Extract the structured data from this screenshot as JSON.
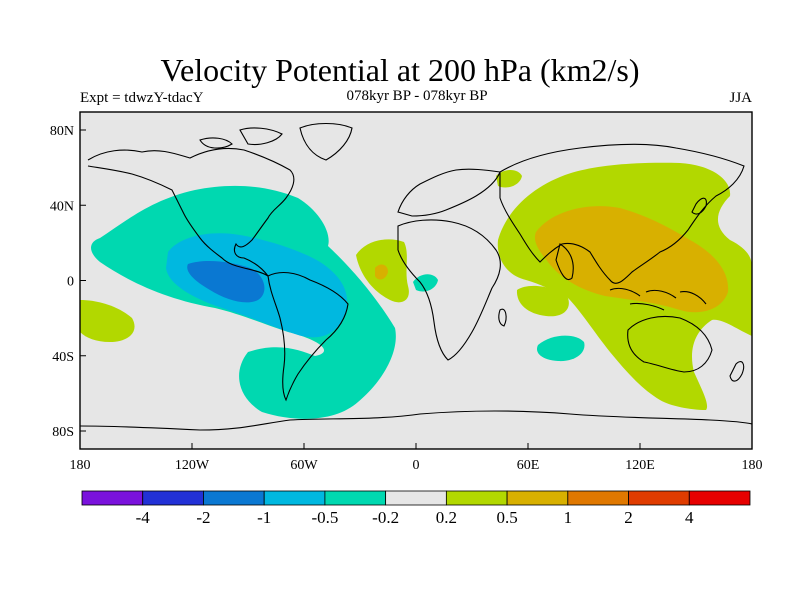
{
  "title": "Velocity Potential at 200 hPa (km2/s)",
  "subtitle_left": "Expt = tdwzY-tdacY",
  "subtitle_center": "078kyr BP - 078kyr BP",
  "subtitle_right": "JJA",
  "lat_ticks": [
    "80N",
    "40N",
    "0",
    "40S",
    "80S"
  ],
  "lon_ticks": [
    "180",
    "120W",
    "60W",
    "0",
    "60E",
    "120E",
    "180"
  ],
  "colorbar": {
    "colors": [
      "#7a12dc",
      "#2231d6",
      "#0a78d2",
      "#00b8e0",
      "#00d8b0",
      "#e6e6e6",
      "#b2d800",
      "#d8b000",
      "#e07800",
      "#e03c00",
      "#e60000"
    ],
    "labels": [
      "-4",
      "-2",
      "-1",
      "-0.5",
      "-0.2",
      "0.2",
      "0.5",
      "1",
      "2",
      "4"
    ]
  },
  "map_colors": {
    "background": "#e6e6e6",
    "neg_02": "#00d8b0",
    "neg_05": "#00b8e0",
    "neg_1": "#0a78d2",
    "pos_02": "#b2d800",
    "pos_05": "#d8b000"
  }
}
